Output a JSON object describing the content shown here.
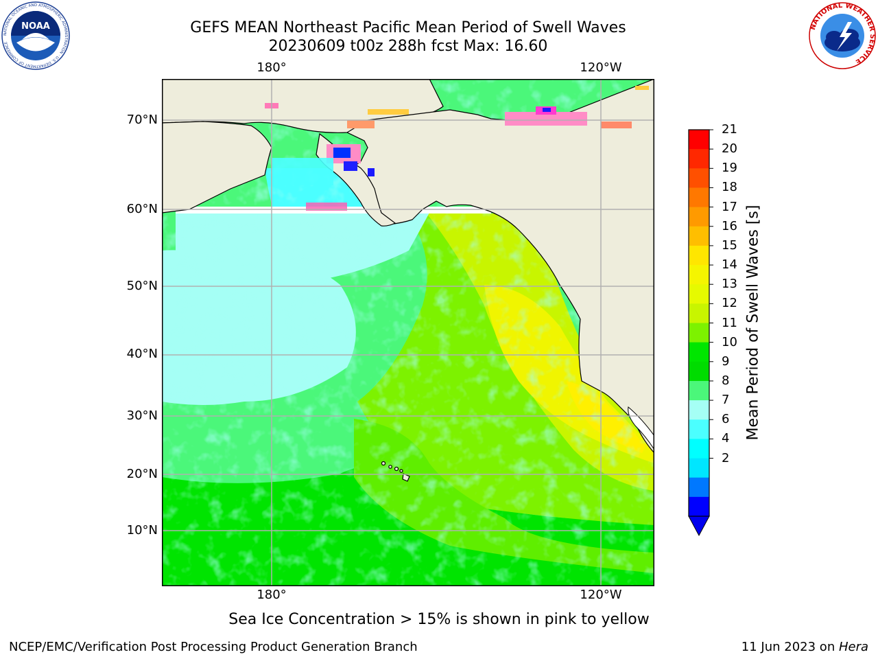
{
  "header": {
    "title_line1": "GEFS MEAN Northeast Pacific Mean Period of Swell Waves",
    "title_line2": "20230609 t00z 288h fcst   Max: 16.60"
  },
  "map": {
    "lon_labels_top": [
      "180°",
      "120°W"
    ],
    "lon_labels_bottom": [
      "180°",
      "120°W"
    ],
    "lat_labels": [
      "70°N",
      "60°N",
      "50°N",
      "40°N",
      "30°N",
      "20°N",
      "10°N"
    ],
    "land_color": "#eeeddc",
    "grid_color": "#b0b0b0"
  },
  "colorbar": {
    "title": "Mean Period of Swell Waves [s]",
    "ticks": [
      "21",
      "20",
      "19",
      "18",
      "17",
      "16",
      "15",
      "14",
      "13",
      "12",
      "11",
      "10",
      "9",
      "8",
      "7",
      "6",
      "4",
      "2"
    ],
    "colors_top_to_bottom": [
      "#ff0000",
      "#ff2800",
      "#ff5000",
      "#ff7800",
      "#ff9a00",
      "#ffbe00",
      "#ffe600",
      "#f5f500",
      "#e6fa00",
      "#c8f500",
      "#7df200",
      "#00e600",
      "#00dc00",
      "#4bf77a",
      "#a5fff5",
      "#4bffff",
      "#00ffff",
      "#00e6ff",
      "#0078ff",
      "#0000ff"
    ],
    "extend_color": "#0000ee"
  },
  "note": "Sea Ice Concentration > 15% is shown in pink to yellow",
  "footer": {
    "left": "NCEP/EMC/Verification Post Processing Product Generation Branch",
    "right_prefix": "11 Jun 2023 on ",
    "right_host": "Hera"
  },
  "logos": {
    "noaa_text": "NOAA",
    "noaa_ring_text": "NATIONAL OCEANIC AND ATMOSPHERIC ADMINISTRATION · U.S. DEPARTMENT OF COMMERCE",
    "nws_ring_text": "NATIONAL WEATHER SERVICE"
  }
}
